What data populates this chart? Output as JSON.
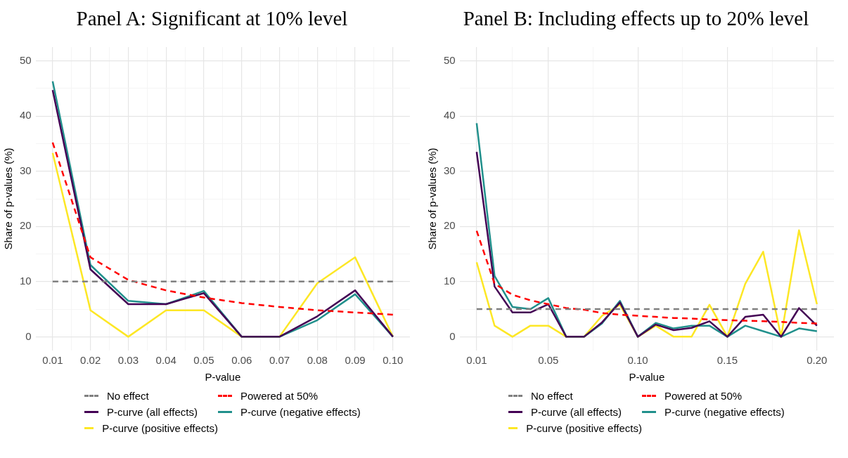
{
  "chart_data": [
    {
      "type": "line",
      "title": "Panel A: Significant at 10% level",
      "xlabel": "P-value",
      "ylabel": "Share of p-values (%)",
      "legend": "bottom",
      "grid": true,
      "xlim": [
        0.0055,
        0.1045
      ],
      "ylim": [
        -2.5,
        52.5
      ],
      "xticks": [
        0.01,
        {
          "value": 0.015,
          "label": null
        },
        0.02,
        {
          "value": 0.025,
          "label": null
        },
        0.03,
        {
          "value": 0.035,
          "label": null
        },
        0.04,
        {
          "value": 0.045,
          "label": null
        },
        0.05,
        {
          "value": 0.055,
          "label": null
        },
        0.06,
        {
          "value": 0.065,
          "label": null
        },
        0.07,
        {
          "value": 0.075,
          "label": null
        },
        0.08,
        {
          "value": 0.085,
          "label": null
        },
        0.09,
        {
          "value": 0.095,
          "label": null
        },
        {
          "value": 0.1,
          "label": "0.10"
        }
      ],
      "yticks": [
        0,
        {
          "value": 5,
          "label": null
        },
        10,
        {
          "value": 15,
          "label": null
        },
        20,
        {
          "value": 25,
          "label": null
        },
        30,
        {
          "value": 35,
          "label": null
        },
        40,
        {
          "value": 45,
          "label": null
        },
        50
      ],
      "x": [
        0.01,
        0.02,
        0.03,
        0.04,
        0.05,
        0.06,
        0.07,
        0.08,
        0.09,
        0.1
      ],
      "series": [
        {
          "name": "No effect",
          "color": "#808080",
          "line_style": "dashed",
          "values": [
            10,
            10,
            10,
            10,
            10,
            10,
            10,
            10,
            10,
            10
          ]
        },
        {
          "name": "Powered at 50%",
          "color": "#ff0000",
          "line_style": "dashed",
          "values": [
            35.2,
            14.4,
            10.3,
            8.4,
            7.1,
            6.1,
            5.4,
            4.8,
            4.4,
            4.0
          ]
        },
        {
          "name": "P-curve (all effects)",
          "color": "#440154",
          "line_style": "solid",
          "values": [
            44.7,
            12.2,
            5.9,
            5.9,
            7.9,
            0,
            0,
            3.7,
            8.4,
            0
          ]
        },
        {
          "name": "P-curve (negative effects)",
          "color": "#21908c",
          "line_style": "solid",
          "values": [
            46.3,
            13.0,
            6.5,
            5.9,
            8.3,
            0,
            0,
            3.0,
            7.7,
            0
          ]
        },
        {
          "name": "P-curve (positive effects)",
          "color": "#fde725",
          "line_style": "solid",
          "values": [
            33.3,
            4.8,
            0,
            4.8,
            4.8,
            0,
            0,
            9.7,
            14.4,
            0
          ]
        }
      ]
    },
    {
      "type": "line",
      "title": "Panel B: Including effects up to 20% level",
      "xlabel": "P-value",
      "ylabel": "Share of p-values (%)",
      "legend": "bottom",
      "grid": true,
      "xlim": [
        0.0005,
        0.2095
      ],
      "ylim": [
        -2.5,
        52.5
      ],
      "xticks": [
        0.01,
        {
          "value": 0.03,
          "label": null
        },
        0.05,
        {
          "value": 0.075,
          "label": null
        },
        {
          "value": 0.1,
          "label": "0.10"
        },
        {
          "value": 0.125,
          "label": null
        },
        0.15,
        {
          "value": 0.175,
          "label": null
        },
        {
          "value": 0.2,
          "label": "0.20"
        }
      ],
      "yticks": [
        0,
        {
          "value": 5,
          "label": null
        },
        10,
        {
          "value": 15,
          "label": null
        },
        20,
        {
          "value": 25,
          "label": null
        },
        30,
        {
          "value": 35,
          "label": null
        },
        40,
        {
          "value": 45,
          "label": null
        },
        50
      ],
      "x": [
        0.01,
        0.02,
        0.03,
        0.04,
        0.05,
        0.06,
        0.07,
        0.08,
        0.09,
        0.1,
        0.11,
        0.12,
        0.13,
        0.14,
        0.15,
        0.16,
        0.17,
        0.18,
        0.19,
        0.2
      ],
      "series": [
        {
          "name": "No effect",
          "color": "#808080",
          "line_style": "dashed",
          "values": [
            5,
            5,
            5,
            5,
            5,
            5,
            5,
            5,
            5,
            5,
            5,
            5,
            5,
            5,
            5,
            5,
            5,
            5,
            5,
            5
          ]
        },
        {
          "name": "Powered at 50%",
          "color": "#ff0000",
          "line_style": "dashed",
          "values": [
            19.2,
            9.6,
            7.6,
            6.6,
            5.9,
            5.2,
            4.9,
            4.3,
            4.0,
            3.8,
            3.6,
            3.4,
            3.3,
            3.1,
            3.0,
            2.9,
            2.8,
            2.7,
            2.5,
            2.4
          ]
        },
        {
          "name": "P-curve (all effects)",
          "color": "#440154",
          "line_style": "solid",
          "values": [
            33.5,
            9.1,
            4.4,
            4.4,
            5.9,
            0,
            0,
            2.6,
            6.2,
            0,
            2.2,
            1.2,
            1.6,
            2.8,
            0,
            3.6,
            4.0,
            0,
            5.2,
            2.0
          ]
        },
        {
          "name": "P-curve (negative effects)",
          "color": "#21908c",
          "line_style": "solid",
          "values": [
            38.7,
            11.0,
            5.4,
            5.0,
            7.0,
            0,
            0,
            2.4,
            6.5,
            0,
            2.5,
            1.5,
            2.0,
            2.0,
            0,
            2.0,
            1.0,
            0,
            1.5,
            1.0
          ]
        },
        {
          "name": "P-curve (positive effects)",
          "color": "#fde725",
          "line_style": "solid",
          "values": [
            13.5,
            2.0,
            0,
            2.0,
            2.0,
            0,
            0,
            3.8,
            5.8,
            0,
            2.0,
            0,
            0,
            5.8,
            0,
            9.6,
            15.4,
            0,
            19.3,
            5.9
          ]
        }
      ]
    }
  ]
}
